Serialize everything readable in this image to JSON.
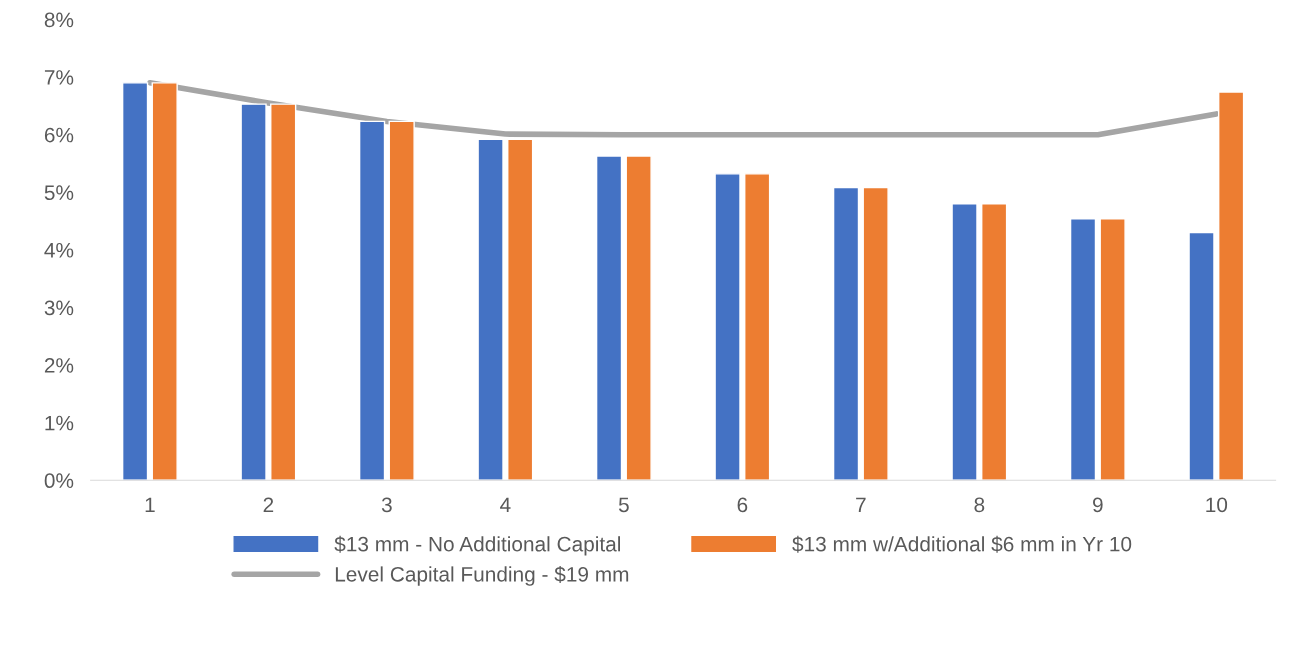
{
  "chart_data": {
    "type": "bar",
    "categories": [
      "1",
      "2",
      "3",
      "4",
      "5",
      "6",
      "7",
      "8",
      "9",
      "10"
    ],
    "series": [
      {
        "name": "$13 mm - No Additional Capital",
        "color": "#4472c4",
        "values": [
          6.9,
          6.53,
          6.23,
          5.92,
          5.63,
          5.32,
          5.08,
          4.8,
          4.54,
          4.3
        ]
      },
      {
        "name": "$13 mm w/Additional $6 mm in Yr 10",
        "color": "#ed7d31",
        "values": [
          6.9,
          6.53,
          6.23,
          5.92,
          5.63,
          5.32,
          5.08,
          4.8,
          4.54,
          6.74
        ]
      },
      {
        "name": "Level Capital Funding - $19 mm",
        "type": "line",
        "color": "#a5a5a5",
        "values": [
          6.9,
          6.55,
          6.23,
          6.01,
          6.0,
          6.0,
          6.0,
          6.0,
          6.0,
          6.36
        ]
      }
    ],
    "ylim": [
      0,
      8
    ],
    "yticks": [
      {
        "value": 0,
        "label": "0%"
      },
      {
        "value": 1,
        "label": "1%"
      },
      {
        "value": 2,
        "label": "2%"
      },
      {
        "value": 3,
        "label": "3%"
      },
      {
        "value": 4,
        "label": "4%"
      },
      {
        "value": 5,
        "label": "5%"
      },
      {
        "value": 6,
        "label": "6%"
      },
      {
        "value": 7,
        "label": "7%"
      },
      {
        "value": 8,
        "label": "8%"
      }
    ],
    "grid": false,
    "legend": "bottom",
    "marker": "none",
    "line_style": "solid"
  }
}
